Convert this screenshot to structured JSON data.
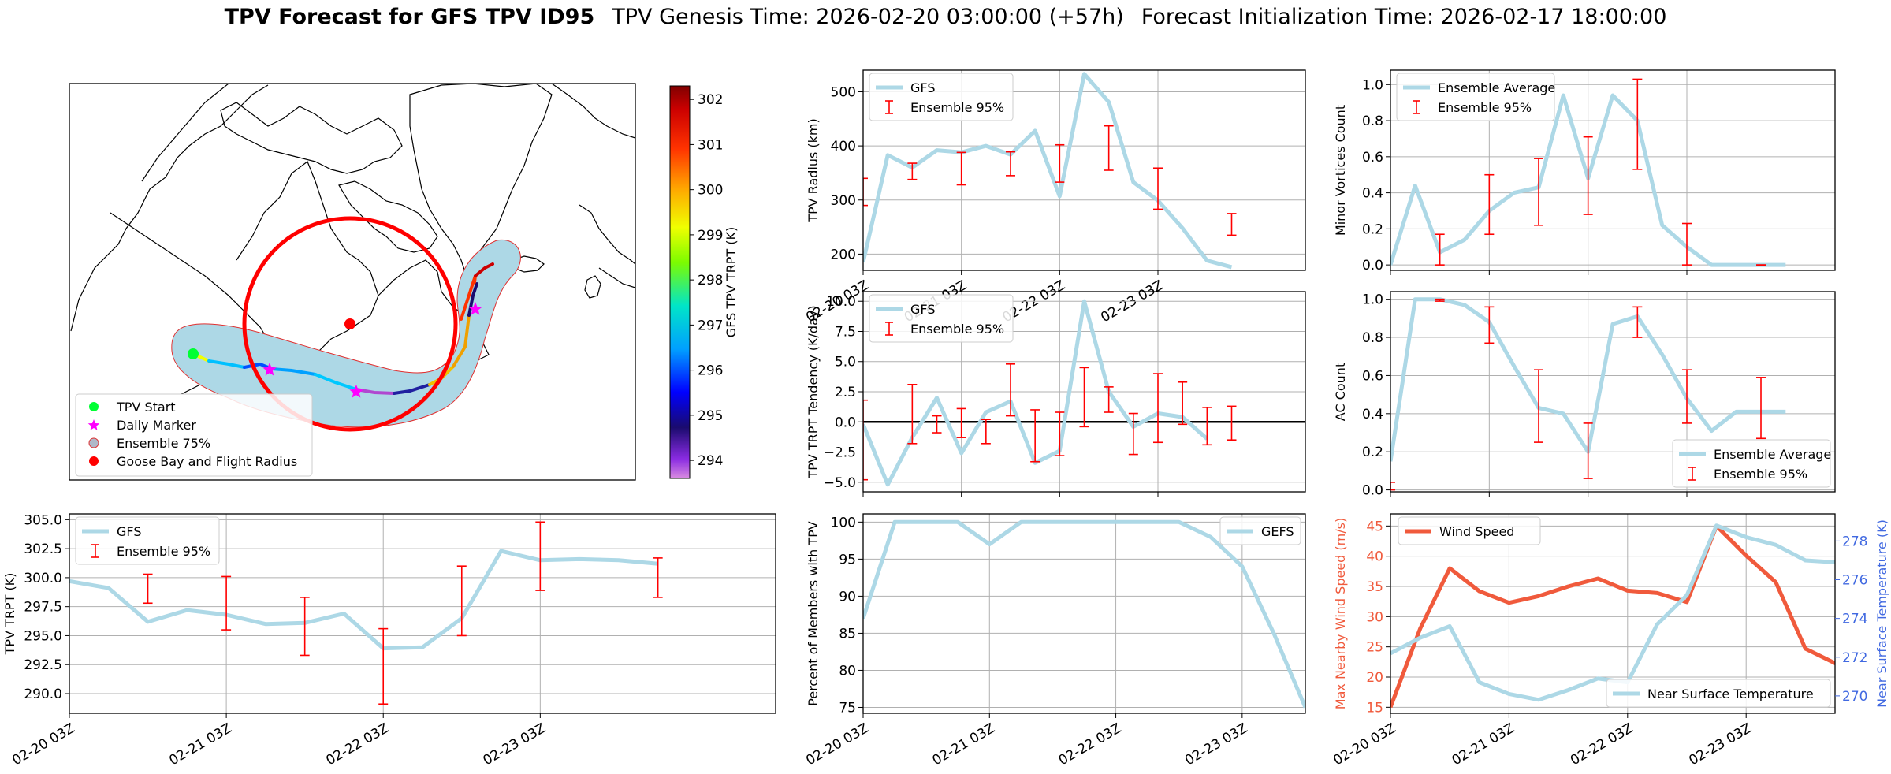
{
  "figure_title": {
    "bold": "TPV Forecast for GFS TPV ID95",
    "genesis": "TPV Genesis Time: 2026-02-20 03:00:00 (+57h)",
    "init": "Forecast Initialization Time: 2026-02-17 18:00:00"
  },
  "colors": {
    "gfs_line": "#add8e6",
    "ensemble_err": "#ff0000",
    "wind": "#f05a3c",
    "temp_axis": "#4169e1",
    "wind_axis": "#f05a3c"
  },
  "map": {
    "colorbar_label": "GFS TPV TRPT (K)",
    "colorbar_ticks": [
      "294",
      "295",
      "296",
      "297",
      "298",
      "299",
      "300",
      "301",
      "302"
    ],
    "colorbar_range": [
      293.6,
      302.3
    ],
    "legend": [
      "TPV Start",
      "Daily Marker",
      "Ensemble 75%",
      "Goose Bay and Flight Radius"
    ],
    "legend_icons": [
      "green-dot-icon",
      "magenta-star-icon",
      "lightblue-patch-icon",
      "red-dot-icon"
    ]
  },
  "chart_data": [
    {
      "id": "radius",
      "type": "line",
      "ylabel": "TPV Radius (km)",
      "ylim": [
        170,
        540
      ],
      "yticks": [
        "200",
        "300",
        "400",
        "500"
      ],
      "x_ticklabels": [
        "02-20 03Z",
        "02-21 03Z",
        "02-22 03Z",
        "02-23 03Z"
      ],
      "legend": [
        "GFS",
        "Ensemble 95%"
      ],
      "legend_position": "upper-left",
      "series": [
        {
          "name": "GFS",
          "x": [
            0,
            3,
            6,
            9,
            12,
            15,
            18,
            21,
            24,
            27,
            30,
            33,
            36,
            39,
            42,
            45,
            48,
            51,
            54
          ],
          "values": [
            185,
            383,
            360,
            392,
            388,
            400,
            384,
            428,
            307,
            533,
            481,
            333,
            299,
            248,
            188,
            176,
            null,
            null,
            null
          ]
        }
      ],
      "errorbars": {
        "name": "Ensemble 95%",
        "x": [
          0,
          6,
          12,
          18,
          24,
          30,
          36,
          45
        ],
        "low": [
          290,
          338,
          328,
          345,
          333,
          355,
          283,
          235
        ],
        "high": [
          340,
          368,
          388,
          389,
          402,
          437,
          359,
          275
        ]
      }
    },
    {
      "id": "minor",
      "type": "line",
      "ylabel": "Minor Vortices Count",
      "ylim": [
        -0.03,
        1.08
      ],
      "yticks": [
        "0.0",
        "0.2",
        "0.4",
        "0.6",
        "0.8",
        "1.0"
      ],
      "x_ticklabels": [],
      "legend": [
        "Ensemble Average",
        "Ensemble 95%"
      ],
      "legend_position": "upper-left",
      "series": [
        {
          "name": "Ensemble Average",
          "x": [
            0,
            3,
            6,
            9,
            12,
            15,
            18,
            21,
            24,
            27,
            30,
            33,
            36,
            39,
            42,
            45,
            48
          ],
          "values": [
            0.0,
            0.44,
            0.07,
            0.14,
            0.3,
            0.4,
            0.43,
            0.94,
            0.48,
            0.94,
            0.8,
            0.22,
            0.1,
            0.0,
            0.0,
            0.0,
            0.0
          ]
        }
      ],
      "errorbars": {
        "name": "Ensemble 95%",
        "x": [
          6,
          12,
          18,
          24,
          30,
          36,
          45
        ],
        "low": [
          0.0,
          0.17,
          0.22,
          0.28,
          0.53,
          0.0,
          0.0
        ],
        "high": [
          0.17,
          0.5,
          0.59,
          0.71,
          1.03,
          0.23,
          0.0
        ]
      }
    },
    {
      "id": "tendency",
      "type": "line",
      "ylabel": "TPV TRPT Tendency (K/day)",
      "ylim": [
        -5.8,
        10.8
      ],
      "yticks": [
        "−5.0",
        "−2.5",
        "0.0",
        "2.5",
        "5.0",
        "7.5",
        "10.0"
      ],
      "x_ticklabels": [],
      "legend": [
        "GFS",
        "Ensemble 95%"
      ],
      "legend_position": "upper-left",
      "series": [
        {
          "name": "GFS",
          "x": [
            0,
            3,
            6,
            9,
            12,
            15,
            18,
            21,
            24,
            27,
            30,
            33,
            36,
            39,
            42,
            45,
            48
          ],
          "values": [
            -0.2,
            -5.2,
            -1.3,
            2.0,
            -2.6,
            0.8,
            1.7,
            -3.4,
            -2.4,
            10.0,
            2.5,
            -0.4,
            0.7,
            0.4,
            -1.4,
            null,
            null
          ]
        }
      ],
      "errorbars": {
        "name": "Ensemble 95%",
        "x": [
          0,
          6,
          9,
          12,
          15,
          18,
          21,
          24,
          27,
          30,
          33,
          36,
          39,
          42,
          45,
          48
        ],
        "low": [
          -4.8,
          -1.8,
          -0.9,
          -1.3,
          -1.8,
          0.5,
          -3.3,
          -2.8,
          -0.4,
          0.8,
          -2.7,
          -1.7,
          -0.2,
          -1.9,
          -1.5,
          null
        ],
        "high": [
          1.8,
          3.1,
          0.5,
          1.1,
          0.2,
          4.8,
          1.0,
          0.8,
          4.5,
          2.9,
          0.7,
          4.0,
          3.3,
          1.2,
          1.3,
          null
        ]
      },
      "zero_line": true
    },
    {
      "id": "ac",
      "type": "line",
      "ylabel": "AC Count",
      "ylim": [
        -0.01,
        1.04
      ],
      "yticks": [
        "0.0",
        "0.2",
        "0.4",
        "0.6",
        "0.8",
        "1.0"
      ],
      "x_ticklabels": [],
      "legend": [
        "Ensemble Average",
        "Ensemble 95%"
      ],
      "legend_position": "lower-right",
      "series": [
        {
          "name": "Ensemble Average",
          "x": [
            0,
            3,
            6,
            9,
            12,
            15,
            18,
            21,
            24,
            27,
            30,
            33,
            36,
            39,
            42,
            45,
            48
          ],
          "values": [
            0.15,
            1.0,
            1.0,
            0.97,
            0.88,
            0.65,
            0.43,
            0.4,
            0.2,
            0.87,
            0.91,
            0.71,
            0.48,
            0.31,
            0.41,
            0.41,
            0.41
          ]
        }
      ],
      "errorbars": {
        "name": "Ensemble 95%",
        "x": [
          0,
          6,
          12,
          18,
          24,
          30,
          36,
          45
        ],
        "low": [
          0.0,
          0.99,
          0.77,
          0.25,
          0.06,
          0.8,
          0.35,
          0.27
        ],
        "high": [
          0.04,
          1.0,
          0.96,
          0.63,
          0.35,
          0.96,
          0.63,
          0.59
        ]
      }
    },
    {
      "id": "trpt",
      "type": "line",
      "ylabel": "TPV TRPT (K)",
      "ylim": [
        288.3,
        305.5
      ],
      "yticks": [
        "290.0",
        "292.5",
        "295.0",
        "297.5",
        "300.0",
        "302.5",
        "305.0"
      ],
      "x_ticklabels": [
        "02-20 03Z",
        "02-21 03Z",
        "02-22 03Z",
        "02-23 03Z"
      ],
      "legend": [
        "GFS",
        "Ensemble 95%"
      ],
      "legend_position": "upper-left",
      "series": [
        {
          "name": "GFS",
          "x": [
            0,
            3,
            6,
            9,
            12,
            15,
            18,
            21,
            24,
            27,
            30,
            33,
            36,
            39,
            42,
            45,
            48,
            51,
            54
          ],
          "values": [
            299.7,
            299.1,
            296.2,
            297.2,
            296.8,
            296.0,
            296.1,
            296.9,
            293.9,
            294.0,
            296.5,
            302.3,
            301.5,
            301.6,
            301.5,
            301.2,
            null,
            null,
            null
          ]
        }
      ],
      "errorbars": {
        "name": "Ensemble 95%",
        "x": [
          6,
          12,
          18,
          24,
          30,
          36,
          45
        ],
        "low": [
          297.8,
          295.5,
          293.3,
          289.1,
          295.0,
          298.9,
          298.3
        ],
        "high": [
          300.3,
          300.1,
          298.3,
          295.6,
          301.0,
          304.8,
          301.7
        ]
      }
    },
    {
      "id": "percent",
      "type": "line",
      "ylabel": "Percent of Members with TPV",
      "ylim": [
        74.2,
        101.1
      ],
      "yticks": [
        "75",
        "80",
        "85",
        "90",
        "95",
        "100"
      ],
      "x_ticklabels": [
        "02-20 03Z",
        "02-21 03Z",
        "02-22 03Z",
        "02-23 03Z"
      ],
      "legend": [
        "GEFS"
      ],
      "legend_position": "upper-right",
      "series": [
        {
          "name": "GEFS",
          "x": [
            0,
            3,
            6,
            9,
            12,
            15,
            18,
            21,
            24,
            27,
            30,
            33,
            36,
            39,
            42
          ],
          "values": [
            87,
            100,
            100,
            100,
            97,
            100,
            100,
            100,
            100,
            100,
            100,
            98,
            94,
            85,
            75
          ]
        }
      ]
    },
    {
      "id": "wind",
      "type": "line",
      "ylabel": "Max Nearby Wind Speed (m/s)",
      "ylabel_right": "Near Surface Temperature (K)",
      "ylim": [
        14,
        47
      ],
      "ylim_right": [
        269.1,
        279.4
      ],
      "yticks": [
        "15",
        "20",
        "25",
        "30",
        "35",
        "40",
        "45"
      ],
      "yticks_right": [
        "270",
        "272",
        "274",
        "276",
        "278"
      ],
      "x_ticklabels": [
        "02-20 03Z",
        "02-21 03Z",
        "02-22 03Z",
        "02-23 03Z"
      ],
      "legend": [
        "Wind Speed",
        "Near Surface Temperature"
      ],
      "series": [
        {
          "name": "Wind Speed",
          "x": [
            0,
            3,
            6,
            9,
            12,
            15,
            18,
            21,
            24,
            27,
            30,
            33,
            36,
            39,
            42,
            45,
            48
          ],
          "values": [
            15,
            28,
            38,
            34.2,
            32.3,
            33.4,
            35,
            36.3,
            34.3,
            33.9,
            32.4,
            45,
            40.1,
            35.7,
            24.7,
            22.3,
            20.5
          ]
        },
        {
          "name": "Near Surface Temperature",
          "x": [
            0,
            3,
            6,
            9,
            12,
            15,
            18,
            21,
            24,
            27,
            30,
            33,
            36,
            39,
            42,
            45,
            48
          ],
          "values": [
            272.2,
            273.0,
            273.6,
            270.7,
            270.1,
            269.8,
            270.3,
            270.9,
            270.7,
            273.7,
            275.2,
            278.8,
            278.2,
            277.8,
            277.0,
            276.9,
            276.8
          ]
        }
      ]
    }
  ]
}
